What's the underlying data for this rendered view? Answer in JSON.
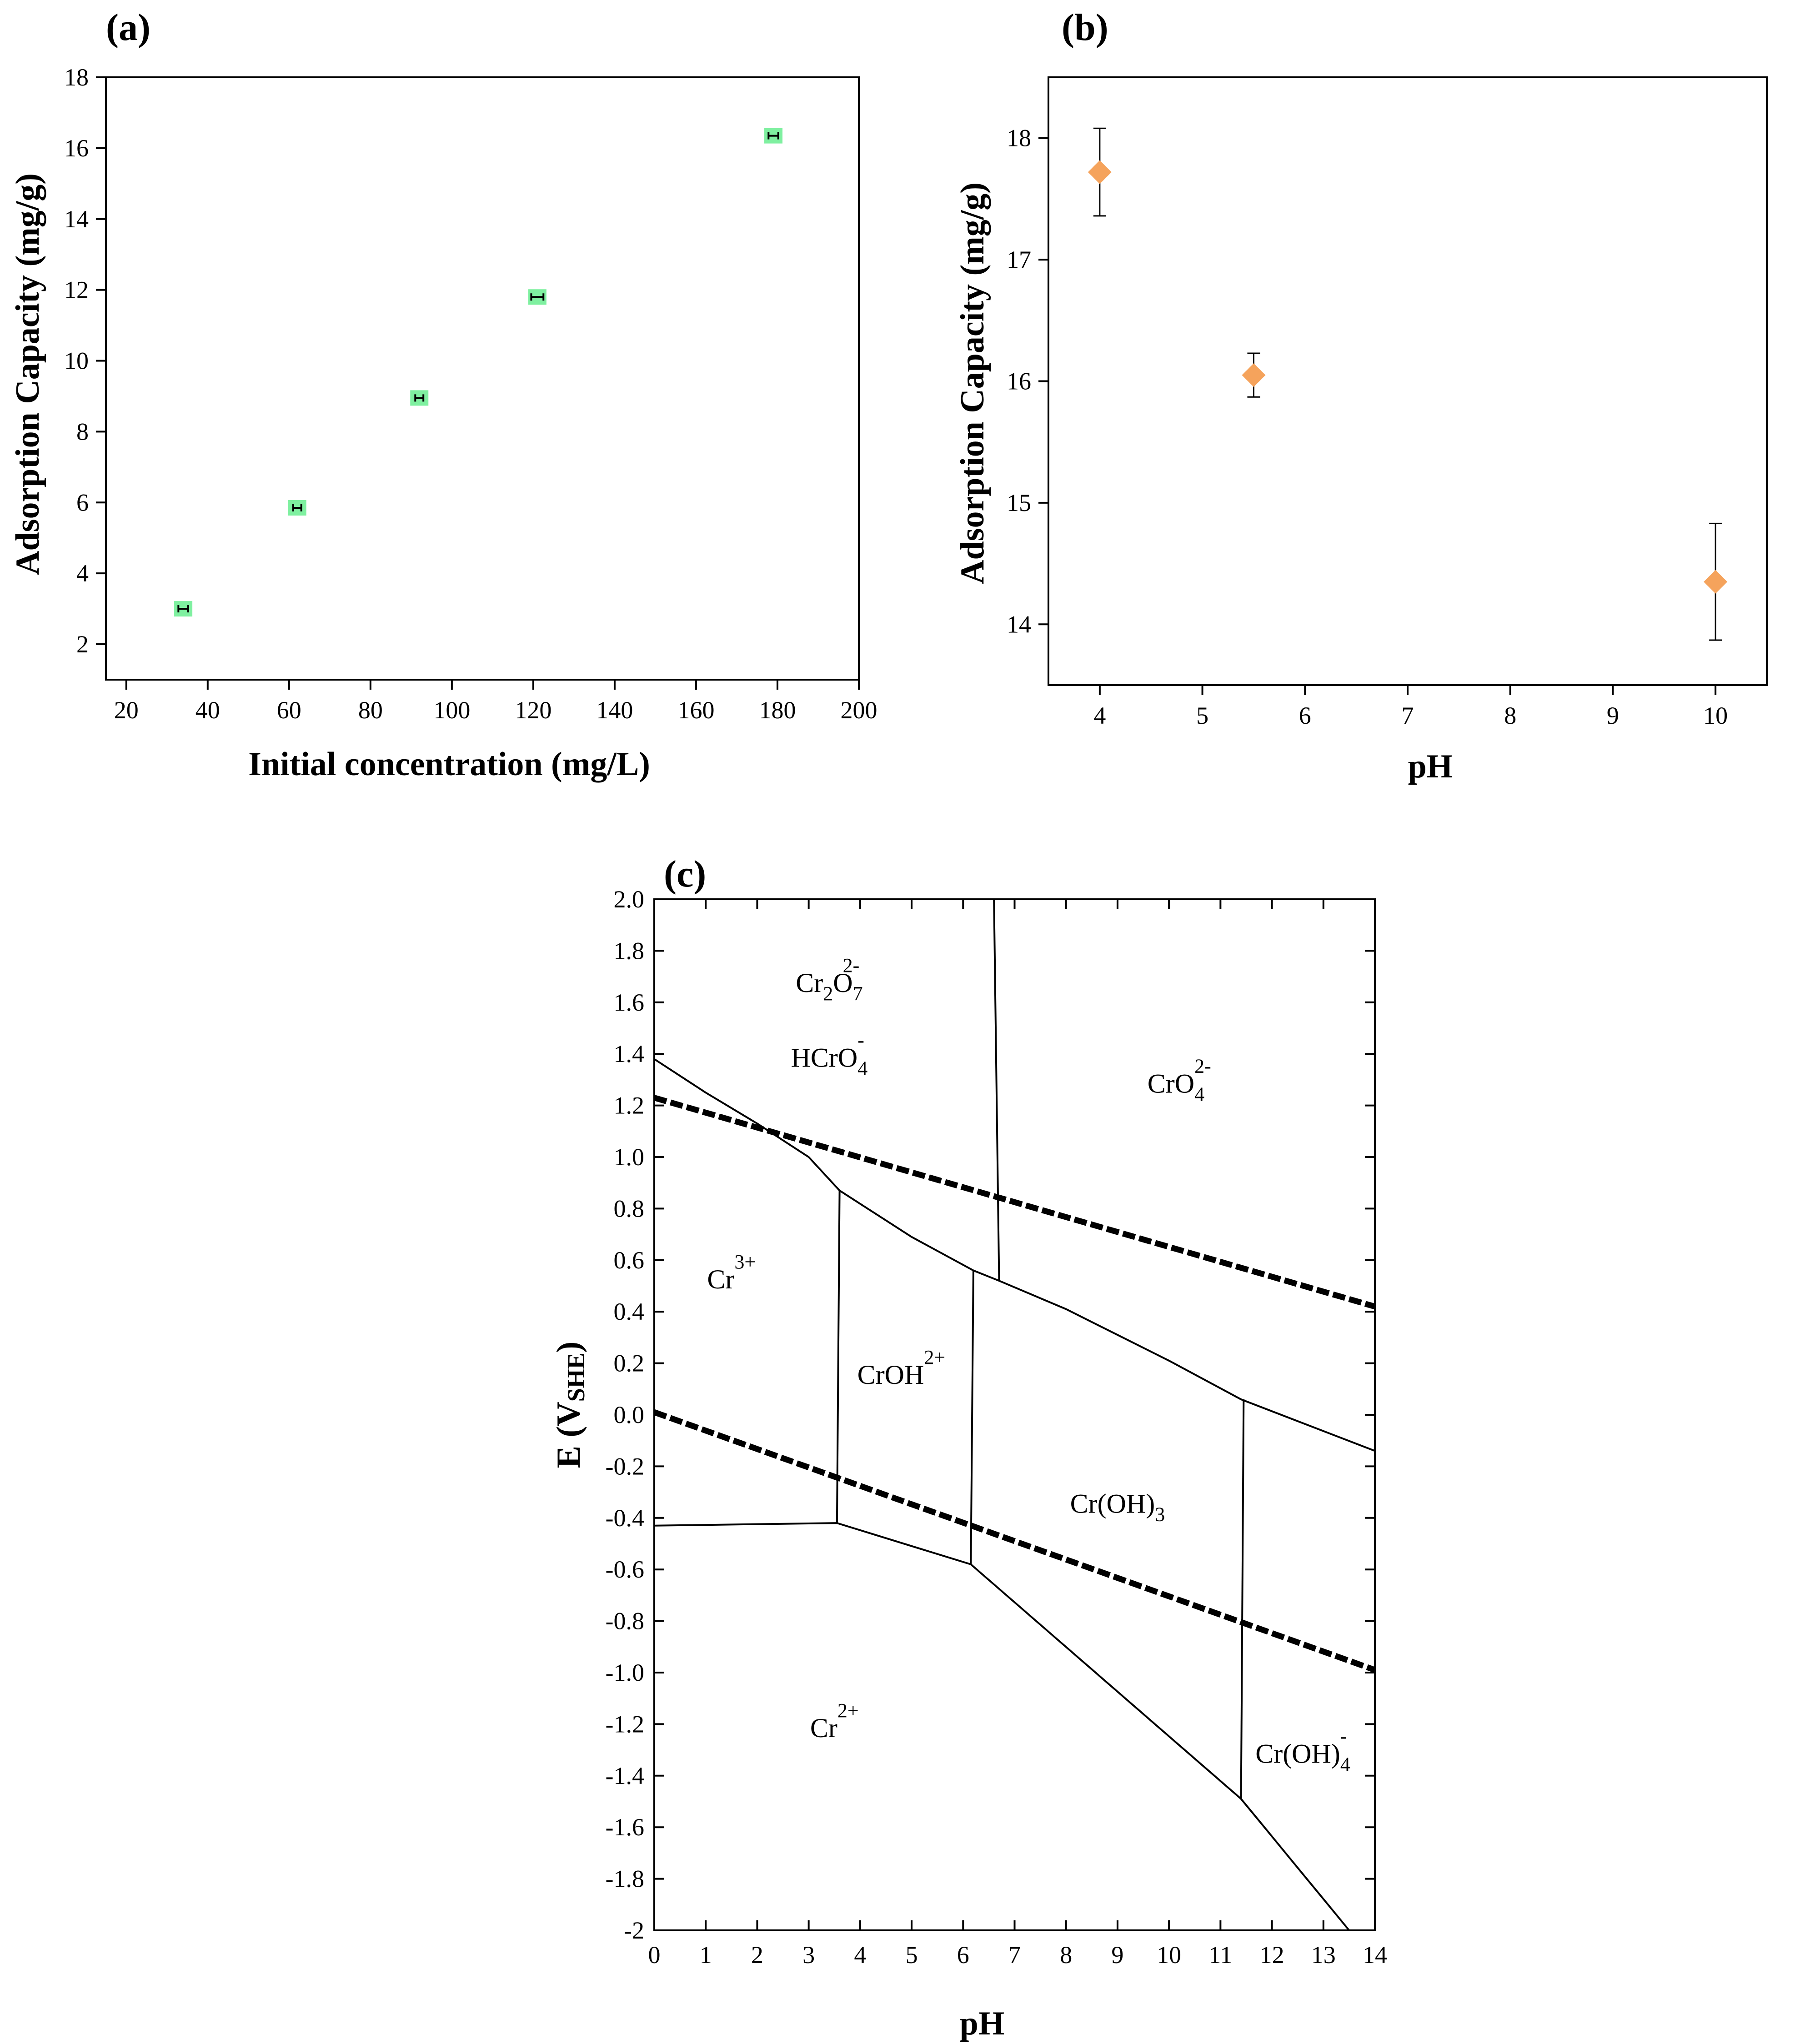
{
  "chart_data": [
    {
      "panel": "(a)",
      "type": "scatter",
      "xlabel": "Initial concentration (mg/L)",
      "ylabel": "Adsorption Capacity (mg/g)",
      "xlim": [
        15,
        200
      ],
      "ylim": [
        1,
        18
      ],
      "xticks": [
        20,
        40,
        60,
        80,
        100,
        120,
        140,
        160,
        180,
        200
      ],
      "yticks": [
        2,
        4,
        6,
        8,
        10,
        12,
        14,
        16,
        18
      ],
      "marker": "square",
      "color": "#7ff0a0",
      "points": [
        {
          "x": 34,
          "y": 3.0,
          "xerr": 1.2,
          "yerr": 0.12
        },
        {
          "x": 62,
          "y": 5.85,
          "xerr": 1.0,
          "yerr": 0.08
        },
        {
          "x": 92,
          "y": 8.95,
          "xerr": 1.0,
          "yerr": 0.05
        },
        {
          "x": 121,
          "y": 11.8,
          "xerr": 1.5,
          "yerr": 0.05
        },
        {
          "x": 179,
          "y": 16.35,
          "xerr": 1.2,
          "yerr": 0.12
        }
      ]
    },
    {
      "panel": "(b)",
      "type": "scatter",
      "xlabel": "pH",
      "ylabel": "Adsorption Capacity (mg/g)",
      "xlim": [
        3.5,
        10.5
      ],
      "ylim": [
        13.5,
        18.5
      ],
      "xticks": [
        4,
        5,
        6,
        7,
        8,
        9,
        10
      ],
      "yticks": [
        14,
        15,
        16,
        17,
        18
      ],
      "marker": "diamond",
      "color": "#f5a35c",
      "points": [
        {
          "x": 4,
          "y": 17.72,
          "yerr": 0.36
        },
        {
          "x": 5.5,
          "y": 16.05,
          "yerr": 0.18
        },
        {
          "x": 10,
          "y": 14.35,
          "yerr": 0.48
        }
      ]
    },
    {
      "panel": "(c)",
      "type": "line",
      "xlabel": "pH",
      "ylabel_main": "E (V",
      "ylabel_sub": "SHE",
      "ylabel_end": ")",
      "xlim": [
        0,
        14
      ],
      "ylim": [
        -2,
        2
      ],
      "xticks": [
        0,
        1,
        2,
        3,
        4,
        5,
        6,
        7,
        8,
        9,
        10,
        11,
        12,
        13,
        14
      ],
      "yticks": [
        "2.0",
        "1.8",
        "1.6",
        "1.4",
        "1.2",
        "1.0",
        "0.8",
        "0.6",
        "0.4",
        "0.2",
        "0.0",
        "-0.2",
        "-0.4",
        "-0.6",
        "-0.8",
        "-1.0",
        "-1.2",
        "-1.4",
        "-1.6",
        "-1.8",
        "-2"
      ],
      "ytick_values": [
        2.0,
        1.8,
        1.6,
        1.4,
        1.2,
        1.0,
        0.8,
        0.6,
        0.4,
        0.2,
        0.0,
        -0.2,
        -0.4,
        -0.6,
        -0.8,
        -1.0,
        -1.2,
        -1.4,
        -1.6,
        -1.8,
        -2.0
      ],
      "boundaries": [
        {
          "name": "cr6-cr3-line",
          "points": [
            [
              0,
              1.38
            ],
            [
              1,
              1.25
            ],
            [
              2,
              1.13
            ],
            [
              3,
              1.0
            ],
            [
              3.6,
              0.87
            ],
            [
              5,
              0.69
            ],
            [
              6.2,
              0.56
            ],
            [
              6.7,
              0.52
            ],
            [
              8,
              0.41
            ],
            [
              9,
              0.31
            ],
            [
              10,
              0.21
            ],
            [
              11.4,
              0.06
            ],
            [
              14,
              -0.14
            ]
          ]
        },
        {
          "name": "dichromate-chromate-line",
          "points": [
            [
              6.6,
              2.0
            ],
            [
              6.7,
              0.52
            ]
          ]
        },
        {
          "name": "cr3-croh-line",
          "points": [
            [
              3.6,
              0.87
            ],
            [
              3.55,
              -0.42
            ]
          ]
        },
        {
          "name": "croh-croh3-line",
          "points": [
            [
              6.2,
              0.56
            ],
            [
              6.15,
              -0.58
            ]
          ]
        },
        {
          "name": "croh3-croh4-line",
          "points": [
            [
              11.45,
              0.06
            ],
            [
              11.4,
              -1.49
            ]
          ]
        },
        {
          "name": "cr2-upper-line",
          "points": [
            [
              0,
              -0.43
            ],
            [
              3.55,
              -0.42
            ],
            [
              6.15,
              -0.58
            ],
            [
              11.4,
              -1.49
            ],
            [
              13.5,
              -2.0
            ]
          ]
        }
      ],
      "water_lines": [
        {
          "name": "oxygen-line",
          "points": [
            [
              0,
              1.23
            ],
            [
              14,
              0.42
            ]
          ]
        },
        {
          "name": "hydrogen-line",
          "points": [
            [
              0,
              0.01
            ],
            [
              14,
              -0.99
            ]
          ]
        }
      ],
      "regions": [
        {
          "main": "Cr",
          "sub": "2",
          "main2": "O",
          "sub2": "7",
          "sup": "2-",
          "x": 3.4,
          "y": 1.64
        },
        {
          "main": "HCrO",
          "sub": "4",
          "sup": "-",
          "x": 3.4,
          "y": 1.35
        },
        {
          "main": "CrO",
          "sub": "4",
          "sup": "2-",
          "x": 10.2,
          "y": 1.25
        },
        {
          "main": "Cr",
          "sup": "3+",
          "x": 1.5,
          "y": 0.49
        },
        {
          "main": "CrOH",
          "sup": "2+",
          "x": 4.8,
          "y": 0.12
        },
        {
          "main": "Cr(OH)",
          "sub": "3",
          "x": 9.0,
          "y": -0.38
        },
        {
          "main": "Cr",
          "sup": "2+",
          "x": 3.5,
          "y": -1.25
        },
        {
          "main": "Cr(OH)",
          "sub": "4",
          "sup": "-",
          "x": 12.6,
          "y": -1.35
        }
      ]
    }
  ]
}
